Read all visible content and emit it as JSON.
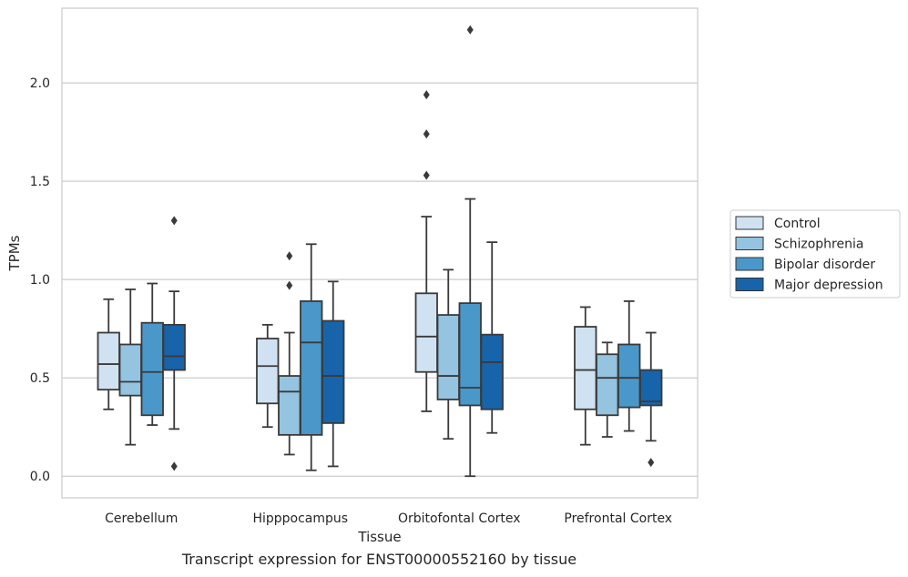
{
  "chart_data": {
    "type": "box",
    "ylabel": "TPMs",
    "xlabel": "Tissue",
    "ylim": [
      -0.11,
      2.38
    ],
    "yticks": [
      0.0,
      0.5,
      1.0,
      1.5,
      2.0
    ],
    "ytick_labels": [
      "0.0",
      "0.5",
      "1.0",
      "1.5",
      "2.0"
    ],
    "grid": "horizontal",
    "legend_position": "right",
    "categories": [
      "Cerebellum",
      "Hipppocampus",
      "Orbitofontal Cortex",
      "Prefrontal Cortex"
    ],
    "series": [
      {
        "name": "Control",
        "color": "#d0e1f2",
        "boxes": [
          {
            "whisker_low": 0.34,
            "q1": 0.44,
            "median": 0.57,
            "q3": 0.73,
            "whisker_high": 0.9,
            "outliers": []
          },
          {
            "whisker_low": 0.25,
            "q1": 0.37,
            "median": 0.56,
            "q3": 0.7,
            "whisker_high": 0.77,
            "outliers": []
          },
          {
            "whisker_low": 0.33,
            "q1": 0.53,
            "median": 0.71,
            "q3": 0.93,
            "whisker_high": 1.32,
            "outliers": [
              1.53,
              1.74,
              1.94
            ]
          },
          {
            "whisker_low": 0.16,
            "q1": 0.34,
            "median": 0.54,
            "q3": 0.76,
            "whisker_high": 0.86,
            "outliers": []
          }
        ]
      },
      {
        "name": "Schizophrenia",
        "color": "#94c4df",
        "boxes": [
          {
            "whisker_low": 0.16,
            "q1": 0.41,
            "median": 0.48,
            "q3": 0.67,
            "whisker_high": 0.95,
            "outliers": []
          },
          {
            "whisker_low": 0.11,
            "q1": 0.21,
            "median": 0.43,
            "q3": 0.51,
            "whisker_high": 0.73,
            "outliers": [
              0.97,
              1.12
            ]
          },
          {
            "whisker_low": 0.19,
            "q1": 0.39,
            "median": 0.51,
            "q3": 0.82,
            "whisker_high": 1.05,
            "outliers": []
          },
          {
            "whisker_low": 0.2,
            "q1": 0.31,
            "median": 0.5,
            "q3": 0.62,
            "whisker_high": 0.68,
            "outliers": []
          }
        ]
      },
      {
        "name": "Bipolar disorder",
        "color": "#4a98c9",
        "boxes": [
          {
            "whisker_low": 0.26,
            "q1": 0.31,
            "median": 0.53,
            "q3": 0.78,
            "whisker_high": 0.98,
            "outliers": []
          },
          {
            "whisker_low": 0.03,
            "q1": 0.21,
            "median": 0.68,
            "q3": 0.89,
            "whisker_high": 1.18,
            "outliers": []
          },
          {
            "whisker_low": 0.0,
            "q1": 0.36,
            "median": 0.45,
            "q3": 0.88,
            "whisker_high": 1.41,
            "outliers": [
              2.27
            ]
          },
          {
            "whisker_low": 0.23,
            "q1": 0.35,
            "median": 0.5,
            "q3": 0.67,
            "whisker_high": 0.89,
            "outliers": []
          }
        ]
      },
      {
        "name": "Major depression",
        "color": "#1764ab",
        "boxes": [
          {
            "whisker_low": 0.24,
            "q1": 0.54,
            "median": 0.61,
            "q3": 0.77,
            "whisker_high": 0.94,
            "outliers": [
              0.05,
              1.3
            ]
          },
          {
            "whisker_low": 0.05,
            "q1": 0.27,
            "median": 0.51,
            "q3": 0.79,
            "whisker_high": 0.99,
            "outliers": []
          },
          {
            "whisker_low": 0.22,
            "q1": 0.34,
            "median": 0.58,
            "q3": 0.72,
            "whisker_high": 1.19,
            "outliers": []
          },
          {
            "whisker_low": 0.18,
            "q1": 0.36,
            "median": 0.38,
            "q3": 0.54,
            "whisker_high": 0.73,
            "outliers": [
              0.07
            ]
          }
        ]
      }
    ]
  },
  "caption": "Transcript expression for ENST00000552160 by tissue"
}
